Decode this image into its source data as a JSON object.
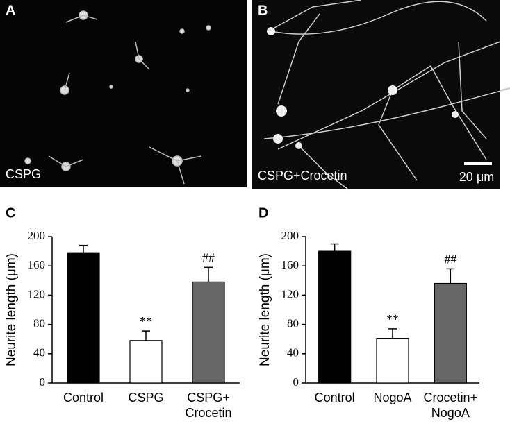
{
  "panels": {
    "a": {
      "letter": "A",
      "caption": "CSPG"
    },
    "b": {
      "letter": "B",
      "caption": "CSPG+Crocetin",
      "scale_bar": "20 μm"
    }
  },
  "chart_data": [
    {
      "type": "bar",
      "panel": "C",
      "y_label": "Neurite length (μm)",
      "categories": [
        "Control",
        "CSPG",
        "CSPG+\nCrocetin"
      ],
      "values": [
        178,
        58,
        138
      ],
      "errors": [
        10,
        13,
        20
      ],
      "colors": [
        "#000000",
        "#ffffff",
        "#666666"
      ],
      "significance": [
        null,
        "**",
        "##"
      ],
      "ylim": [
        0,
        200
      ],
      "yticks": [
        0,
        40,
        80,
        120,
        160,
        200
      ]
    },
    {
      "type": "bar",
      "panel": "D",
      "y_label": "Neurite length (μm)",
      "categories": [
        "Control",
        "NogoA",
        "Crocetin+\nNogoA"
      ],
      "values": [
        180,
        61,
        136
      ],
      "errors": [
        10,
        13,
        20
      ],
      "colors": [
        "#000000",
        "#ffffff",
        "#666666"
      ],
      "significance": [
        null,
        "**",
        "##"
      ],
      "ylim": [
        0,
        200
      ],
      "yticks": [
        0,
        40,
        80,
        120,
        160,
        200
      ]
    }
  ]
}
